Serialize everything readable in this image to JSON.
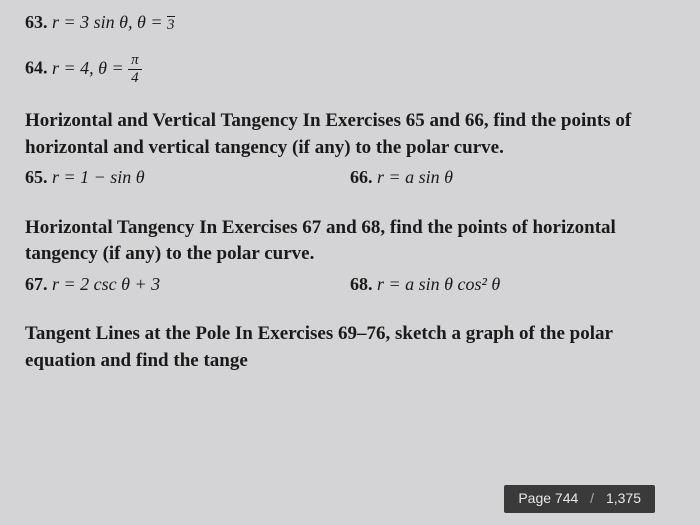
{
  "problems": {
    "p63": {
      "num": "63.",
      "eq": "r = 3 sin θ, θ = ",
      "frac_top": "",
      "frac_bot": "3"
    },
    "p64": {
      "num": "64.",
      "eq": "r = 4, θ = ",
      "frac_top": "π",
      "frac_bot": "4"
    },
    "p65": {
      "num": "65.",
      "eq": "r = 1 − sin θ"
    },
    "p66": {
      "num": "66.",
      "eq": "r = a sin θ"
    },
    "p67": {
      "num": "67.",
      "eq": "r = 2 csc θ + 3"
    },
    "p68": {
      "num": "68.",
      "eq": "r = a sin θ cos² θ"
    }
  },
  "sections": {
    "s1": {
      "title": "Horizontal and Vertical Tangency",
      "lead": "   In Exercises 65 and 66, find the points of horizontal and vertical tangency (if any) to the polar curve."
    },
    "s2": {
      "title": "Horizontal Tangency",
      "lead": "   In Exercises 67 and 68, find the points of horizontal tangency (if any) to the polar curve."
    },
    "s3": {
      "title": "Tangent Lines at the Pole",
      "lead": "   In Exercises 69–76, sketch a graph of the polar equation and find the tange"
    }
  },
  "page_indicator": {
    "label": "Page",
    "current": "744",
    "total": "1,375"
  },
  "styling": {
    "background_color": "#d4d4d6",
    "text_color": "#1a1a1a",
    "font_family": "Georgia",
    "body_fontsize": 19,
    "problem_fontsize": 18,
    "indicator_bg": "#3a3a3a",
    "indicator_fg": "#e8e8e8"
  }
}
